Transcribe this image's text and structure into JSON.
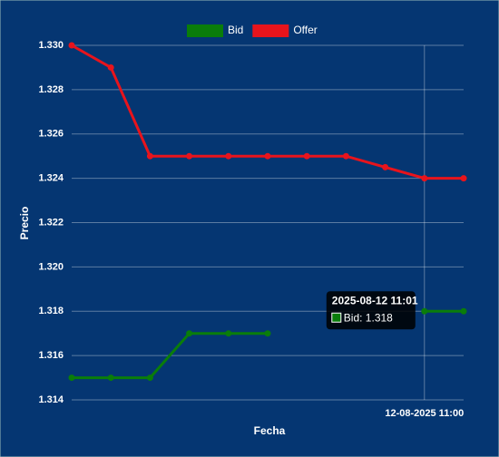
{
  "chart_data": {
    "type": "line",
    "x_label": "Fecha",
    "y_label": "Precio",
    "categories": [
      null,
      null,
      null,
      null,
      null,
      null,
      null,
      null,
      null,
      "12-08-2025 11:00",
      null
    ],
    "series": [
      {
        "name": "Bid",
        "color": "#0a7d0a",
        "values": [
          1.315,
          1.315,
          1.315,
          1.317,
          1.317,
          1.317,
          null,
          null,
          null,
          1.318,
          1.318
        ]
      },
      {
        "name": "Offer",
        "color": "#e8141c",
        "values": [
          1.33,
          1.329,
          1.325,
          1.325,
          1.325,
          1.325,
          1.325,
          1.325,
          1.3245,
          1.324,
          1.324
        ]
      }
    ],
    "ylim": [
      1.314,
      1.33
    ],
    "yticks": [
      1.314,
      1.316,
      1.318,
      {
        "value": 1.32,
        "label": "1.320"
      },
      1.322,
      1.324,
      1.326,
      1.328,
      {
        "value": 1.33,
        "label": "1.330"
      }
    ],
    "grid": true,
    "legend": "top",
    "tooltip": {
      "title": "2025-08-12 11:01",
      "label": "Bid: 1.318"
    }
  }
}
